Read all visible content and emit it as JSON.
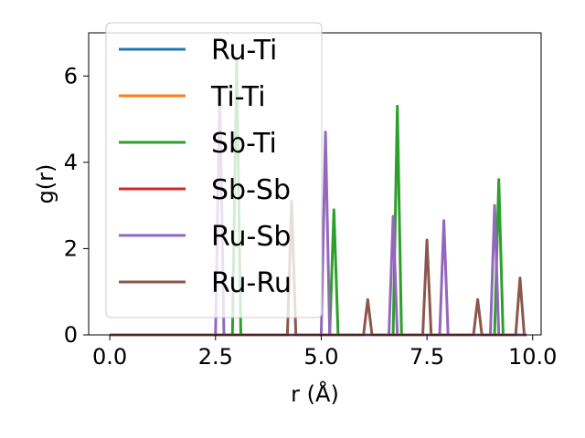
{
  "chart_data": {
    "type": "line",
    "xlabel": "r (Å)",
    "ylabel": "g(r)",
    "xlim": [
      -0.5,
      10.2
    ],
    "ylim": [
      0,
      7
    ],
    "xticks": [
      "0.0",
      "2.5",
      "5.0",
      "7.5",
      "10.0"
    ],
    "yticks": [
      "0",
      "2",
      "4",
      "6"
    ],
    "legend_position": "upper-left",
    "grid": false,
    "series": [
      {
        "name": "Ru-Ti",
        "color": "#1f77b4",
        "x": [
          0.0,
          9.85
        ],
        "y": [
          0,
          0
        ]
      },
      {
        "name": "Ti-Ti",
        "color": "#ff7f0e",
        "x": [
          0.0,
          9.85
        ],
        "y": [
          0,
          0
        ]
      },
      {
        "name": "Sb-Ti",
        "color": "#2ca02c",
        "x": [
          0.0,
          2.9,
          3.0,
          3.1,
          5.2,
          5.3,
          5.4,
          6.7,
          6.8,
          6.9,
          9.1,
          9.2,
          9.3,
          9.85
        ],
        "y": [
          0,
          0,
          6.4,
          0,
          0,
          2.9,
          0,
          0,
          5.3,
          0,
          0,
          3.6,
          0,
          0
        ]
      },
      {
        "name": "Sb-Sb",
        "color": "#d62728",
        "x": [
          0.0,
          9.85
        ],
        "y": [
          0,
          0
        ]
      },
      {
        "name": "Ru-Sb",
        "color": "#9467bd",
        "x": [
          0.0,
          2.5,
          2.6,
          2.7,
          5.0,
          5.1,
          5.2,
          6.6,
          6.7,
          6.8,
          7.8,
          7.9,
          8.0,
          9.0,
          9.1,
          9.2,
          9.85
        ],
        "y": [
          0,
          0,
          5.7,
          0,
          0,
          4.7,
          0,
          0,
          2.75,
          0,
          0,
          2.65,
          0,
          0,
          3.0,
          0,
          0
        ]
      },
      {
        "name": "Ru-Ru",
        "color": "#8c564b",
        "x": [
          0.0,
          4.2,
          4.3,
          4.4,
          6.0,
          6.1,
          6.2,
          7.4,
          7.5,
          7.6,
          8.6,
          8.7,
          8.8,
          9.6,
          9.7,
          9.8,
          9.85
        ],
        "y": [
          0,
          0,
          3.1,
          0,
          0,
          0.82,
          0,
          0,
          2.2,
          0,
          0,
          0.82,
          0,
          0,
          1.32,
          0,
          0
        ]
      }
    ]
  }
}
